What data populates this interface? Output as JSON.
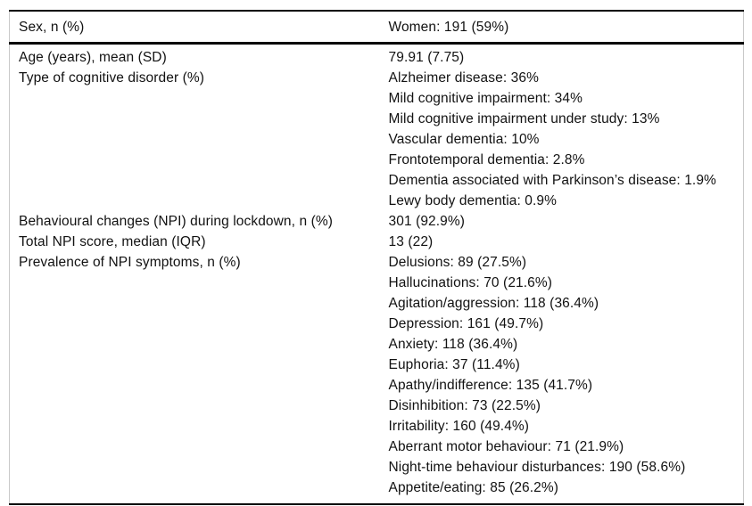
{
  "table": {
    "description": "Patient characteristics and NPI symptom prevalence table",
    "colors": {
      "rule": "#000000",
      "side_border": "#c9c9c9",
      "text": "#121212",
      "background": "#ffffff"
    },
    "header_row": {
      "label": "Sex, n (%)",
      "value": "Women: 191 (59%)"
    },
    "rows": [
      {
        "label": "Age (years), mean (SD)",
        "values": [
          "79.91 (7.75)"
        ]
      },
      {
        "label": "Type of cognitive disorder (%)",
        "values": [
          "Alzheimer disease: 36%",
          "Mild cognitive impairment: 34%",
          "Mild cognitive impairment under study: 13%",
          "Vascular dementia: 10%",
          "Frontotemporal dementia: 2.8%",
          "Dementia associated with Parkinson’s disease: 1.9%",
          "Lewy body dementia: 0.9%"
        ]
      },
      {
        "label": "Behavioural changes (NPI) during lockdown, n (%)",
        "values": [
          "301 (92.9%)"
        ]
      },
      {
        "label": "Total NPI score, median (IQR)",
        "values": [
          "13 (22)"
        ]
      },
      {
        "label": "Prevalence of NPI symptoms, n (%)",
        "values": [
          "Delusions: 89 (27.5%)",
          "Hallucinations: 70 (21.6%)",
          "Agitation/aggression: 118 (36.4%)",
          "Depression: 161 (49.7%)",
          "Anxiety: 118 (36.4%)",
          "Euphoria: 37 (11.4%)",
          "Apathy/indifference: 135 (41.7%)",
          "Disinhibition: 73 (22.5%)",
          "Irritability: 160 (49.4%)",
          "Aberrant motor behaviour: 71 (21.9%)",
          "Night-time behaviour disturbances: 190 (58.6%)",
          "Appetite/eating: 85 (26.2%)"
        ]
      }
    ]
  }
}
